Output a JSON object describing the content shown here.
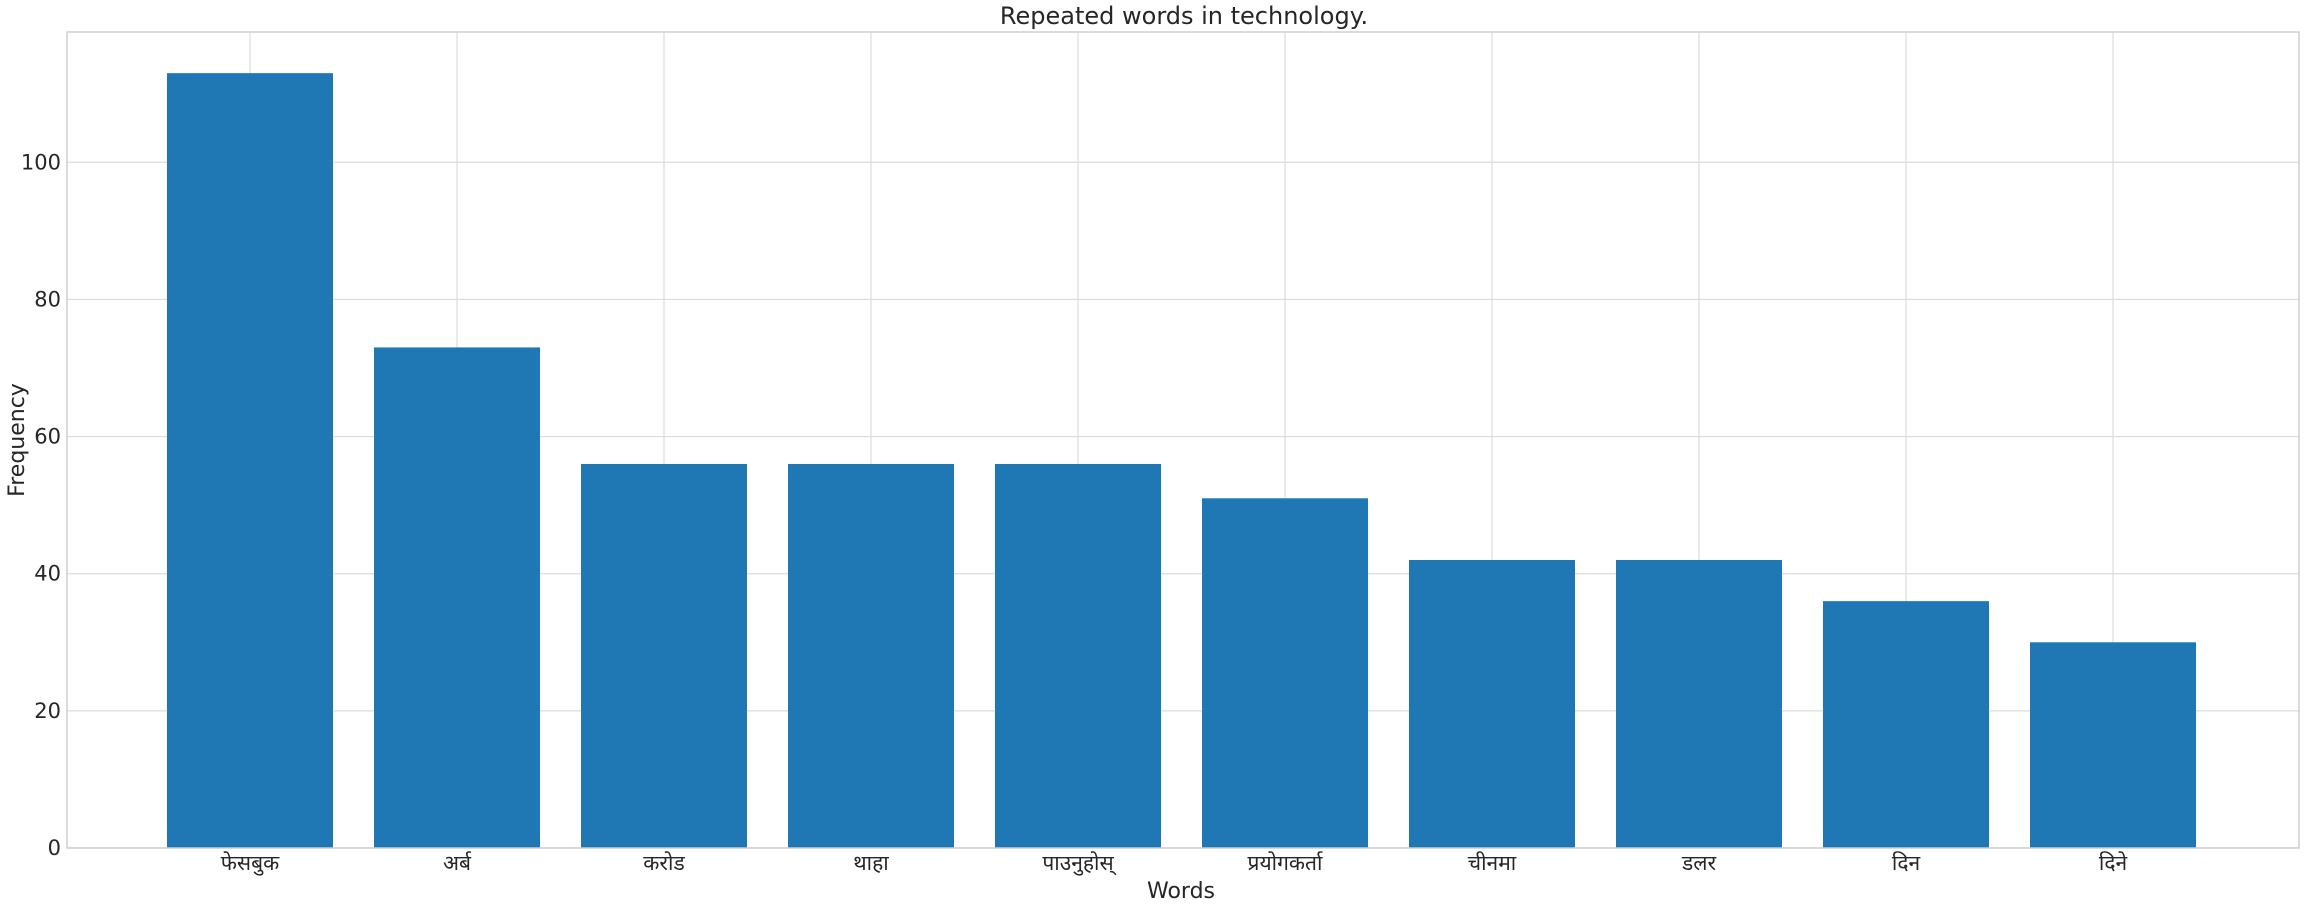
{
  "chart_data": {
    "type": "bar",
    "title": "Repeated words in technology.",
    "xlabel": "Words",
    "ylabel": "Frequency",
    "categories": [
      "फेसबुक",
      "अर्ब",
      "करोड",
      "थाहा",
      "पाउनुहोस्",
      "प्रयोगकर्ता",
      "चीनमा",
      "डलर",
      "दिन",
      "दिने"
    ],
    "values": [
      113,
      73,
      56,
      56,
      56,
      51,
      42,
      42,
      36,
      30
    ],
    "ylim": [
      0,
      119
    ],
    "yticks": [
      0,
      20,
      40,
      60,
      80,
      100
    ],
    "grid": true,
    "bar_color": "#1f77b4"
  }
}
